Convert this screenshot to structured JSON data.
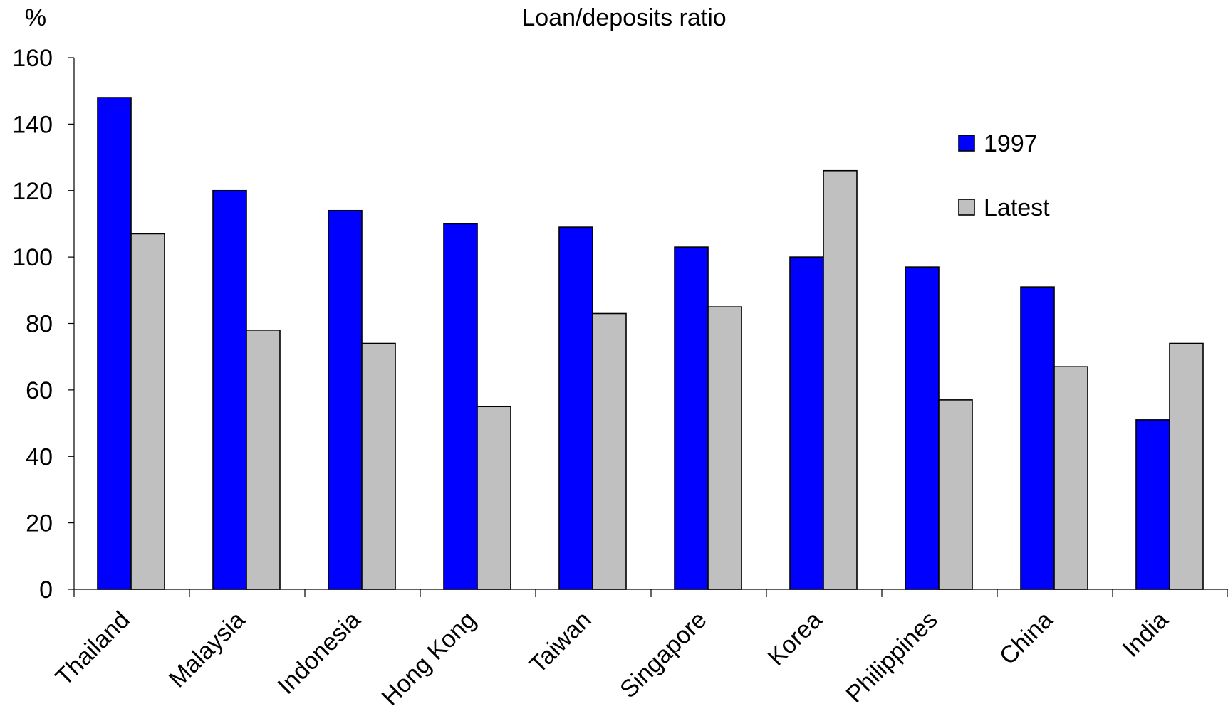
{
  "chart_data": {
    "type": "bar",
    "title": "Loan/deposits ratio",
    "ylabel": "%",
    "xlabel": "",
    "ylim": [
      0,
      160
    ],
    "yticks": [
      0,
      20,
      40,
      60,
      80,
      100,
      120,
      140,
      160
    ],
    "categories": [
      "Thailand",
      "Malaysia",
      "Indonesia",
      "Hong Kong",
      "Taiwan",
      "Singapore",
      "Korea",
      "Philippines",
      "China",
      "India"
    ],
    "series": [
      {
        "name": "1997",
        "color": "#0000ff",
        "values": [
          148,
          120,
          114,
          110,
          109,
          103,
          100,
          97,
          91,
          51
        ]
      },
      {
        "name": "Latest",
        "color": "#c0c0c0",
        "values": [
          107,
          78,
          74,
          55,
          83,
          85,
          126,
          57,
          67,
          74
        ]
      }
    ],
    "legend": "right",
    "grid": false
  }
}
